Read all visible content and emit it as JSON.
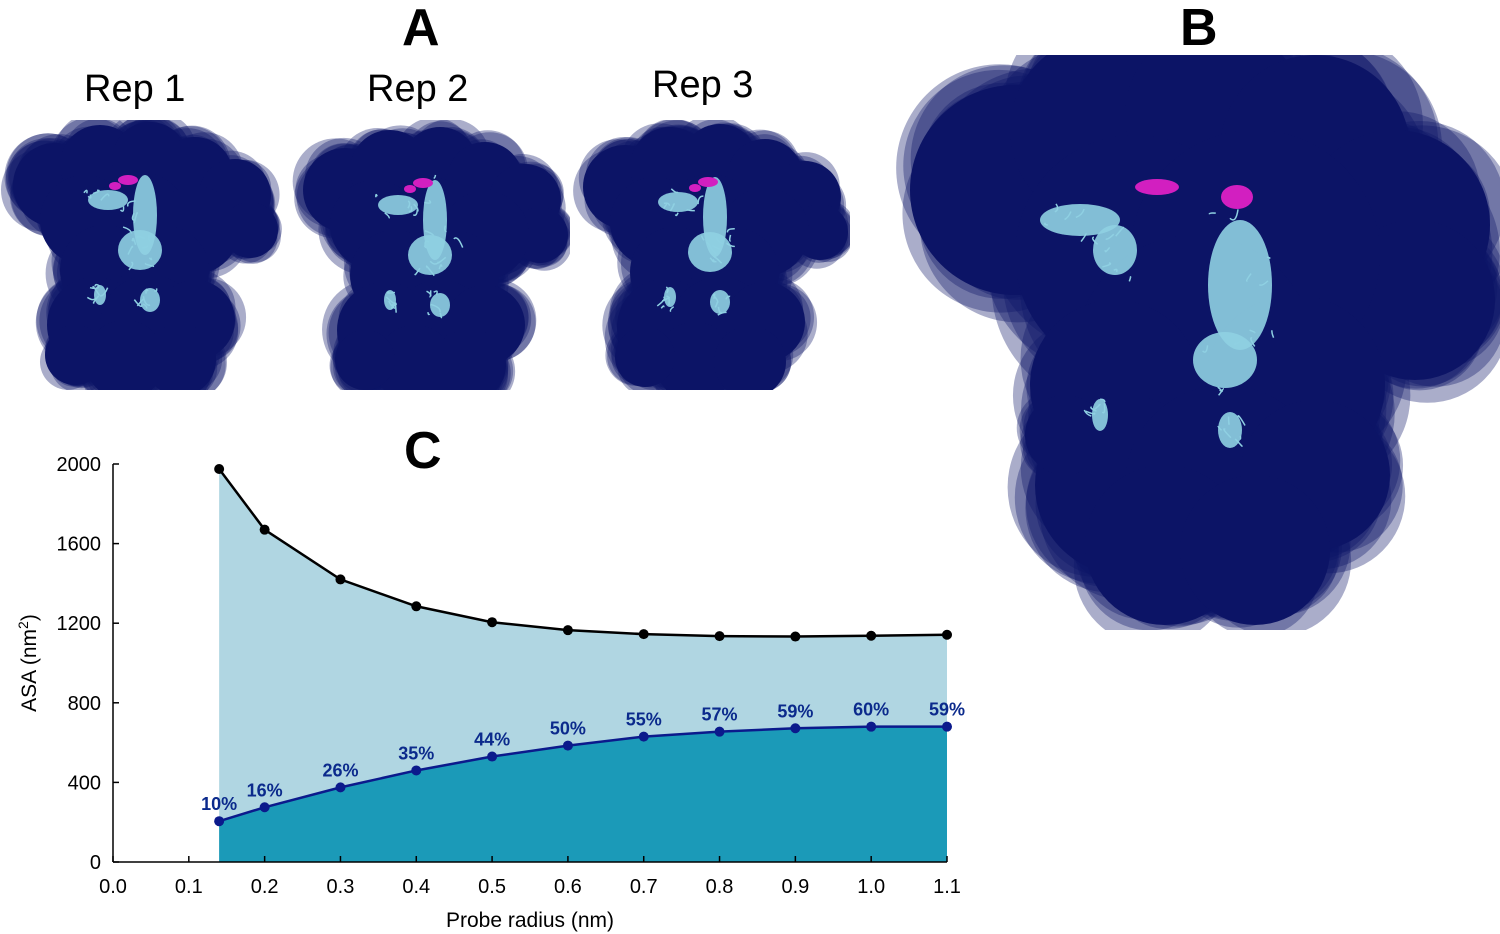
{
  "panels": {
    "a_label": "A",
    "b_label": "B",
    "c_label": "C"
  },
  "replicas": [
    "Rep 1",
    "Rep 2",
    "Rep 3"
  ],
  "colors": {
    "cloud": "#0c1466",
    "protein": "#8fd0e2",
    "highlight": "#d21fc0",
    "total_fill": "#b0d6e2",
    "buried_fill": "#1b9ab8",
    "total_line": "#000000",
    "buried_line": "#0b1a8c",
    "pct_label": "#0b2a8c"
  },
  "chart_data": {
    "type": "area",
    "xlabel": "Probe radius (nm)",
    "ylabel": "ASA (nm",
    "ylabel_sup": "2",
    "ylabel_end": ")",
    "xlim": [
      0.0,
      1.1
    ],
    "ylim": [
      0,
      2000
    ],
    "xticks": [
      "0.0",
      "0.1",
      "0.2",
      "0.3",
      "0.4",
      "0.5",
      "0.6",
      "0.7",
      "0.8",
      "0.9",
      "1.0",
      "1.1"
    ],
    "yticks": [
      "0",
      "400",
      "800",
      "1200",
      "1600",
      "2000"
    ],
    "x": [
      0.14,
      0.2,
      0.3,
      0.4,
      0.5,
      0.6,
      0.7,
      0.8,
      0.9,
      1.0,
      1.1
    ],
    "series": [
      {
        "values": [
          1975,
          1670,
          1420,
          1285,
          1205,
          1165,
          1145,
          1135,
          1133,
          1137,
          1142
        ]
      },
      {
        "values": [
          205,
          275,
          375,
          460,
          530,
          585,
          630,
          655,
          672,
          680,
          680
        ],
        "labels": [
          "10%",
          "16%",
          "26%",
          "35%",
          "44%",
          "50%",
          "55%",
          "57%",
          "59%",
          "60%",
          "59%"
        ]
      }
    ]
  }
}
